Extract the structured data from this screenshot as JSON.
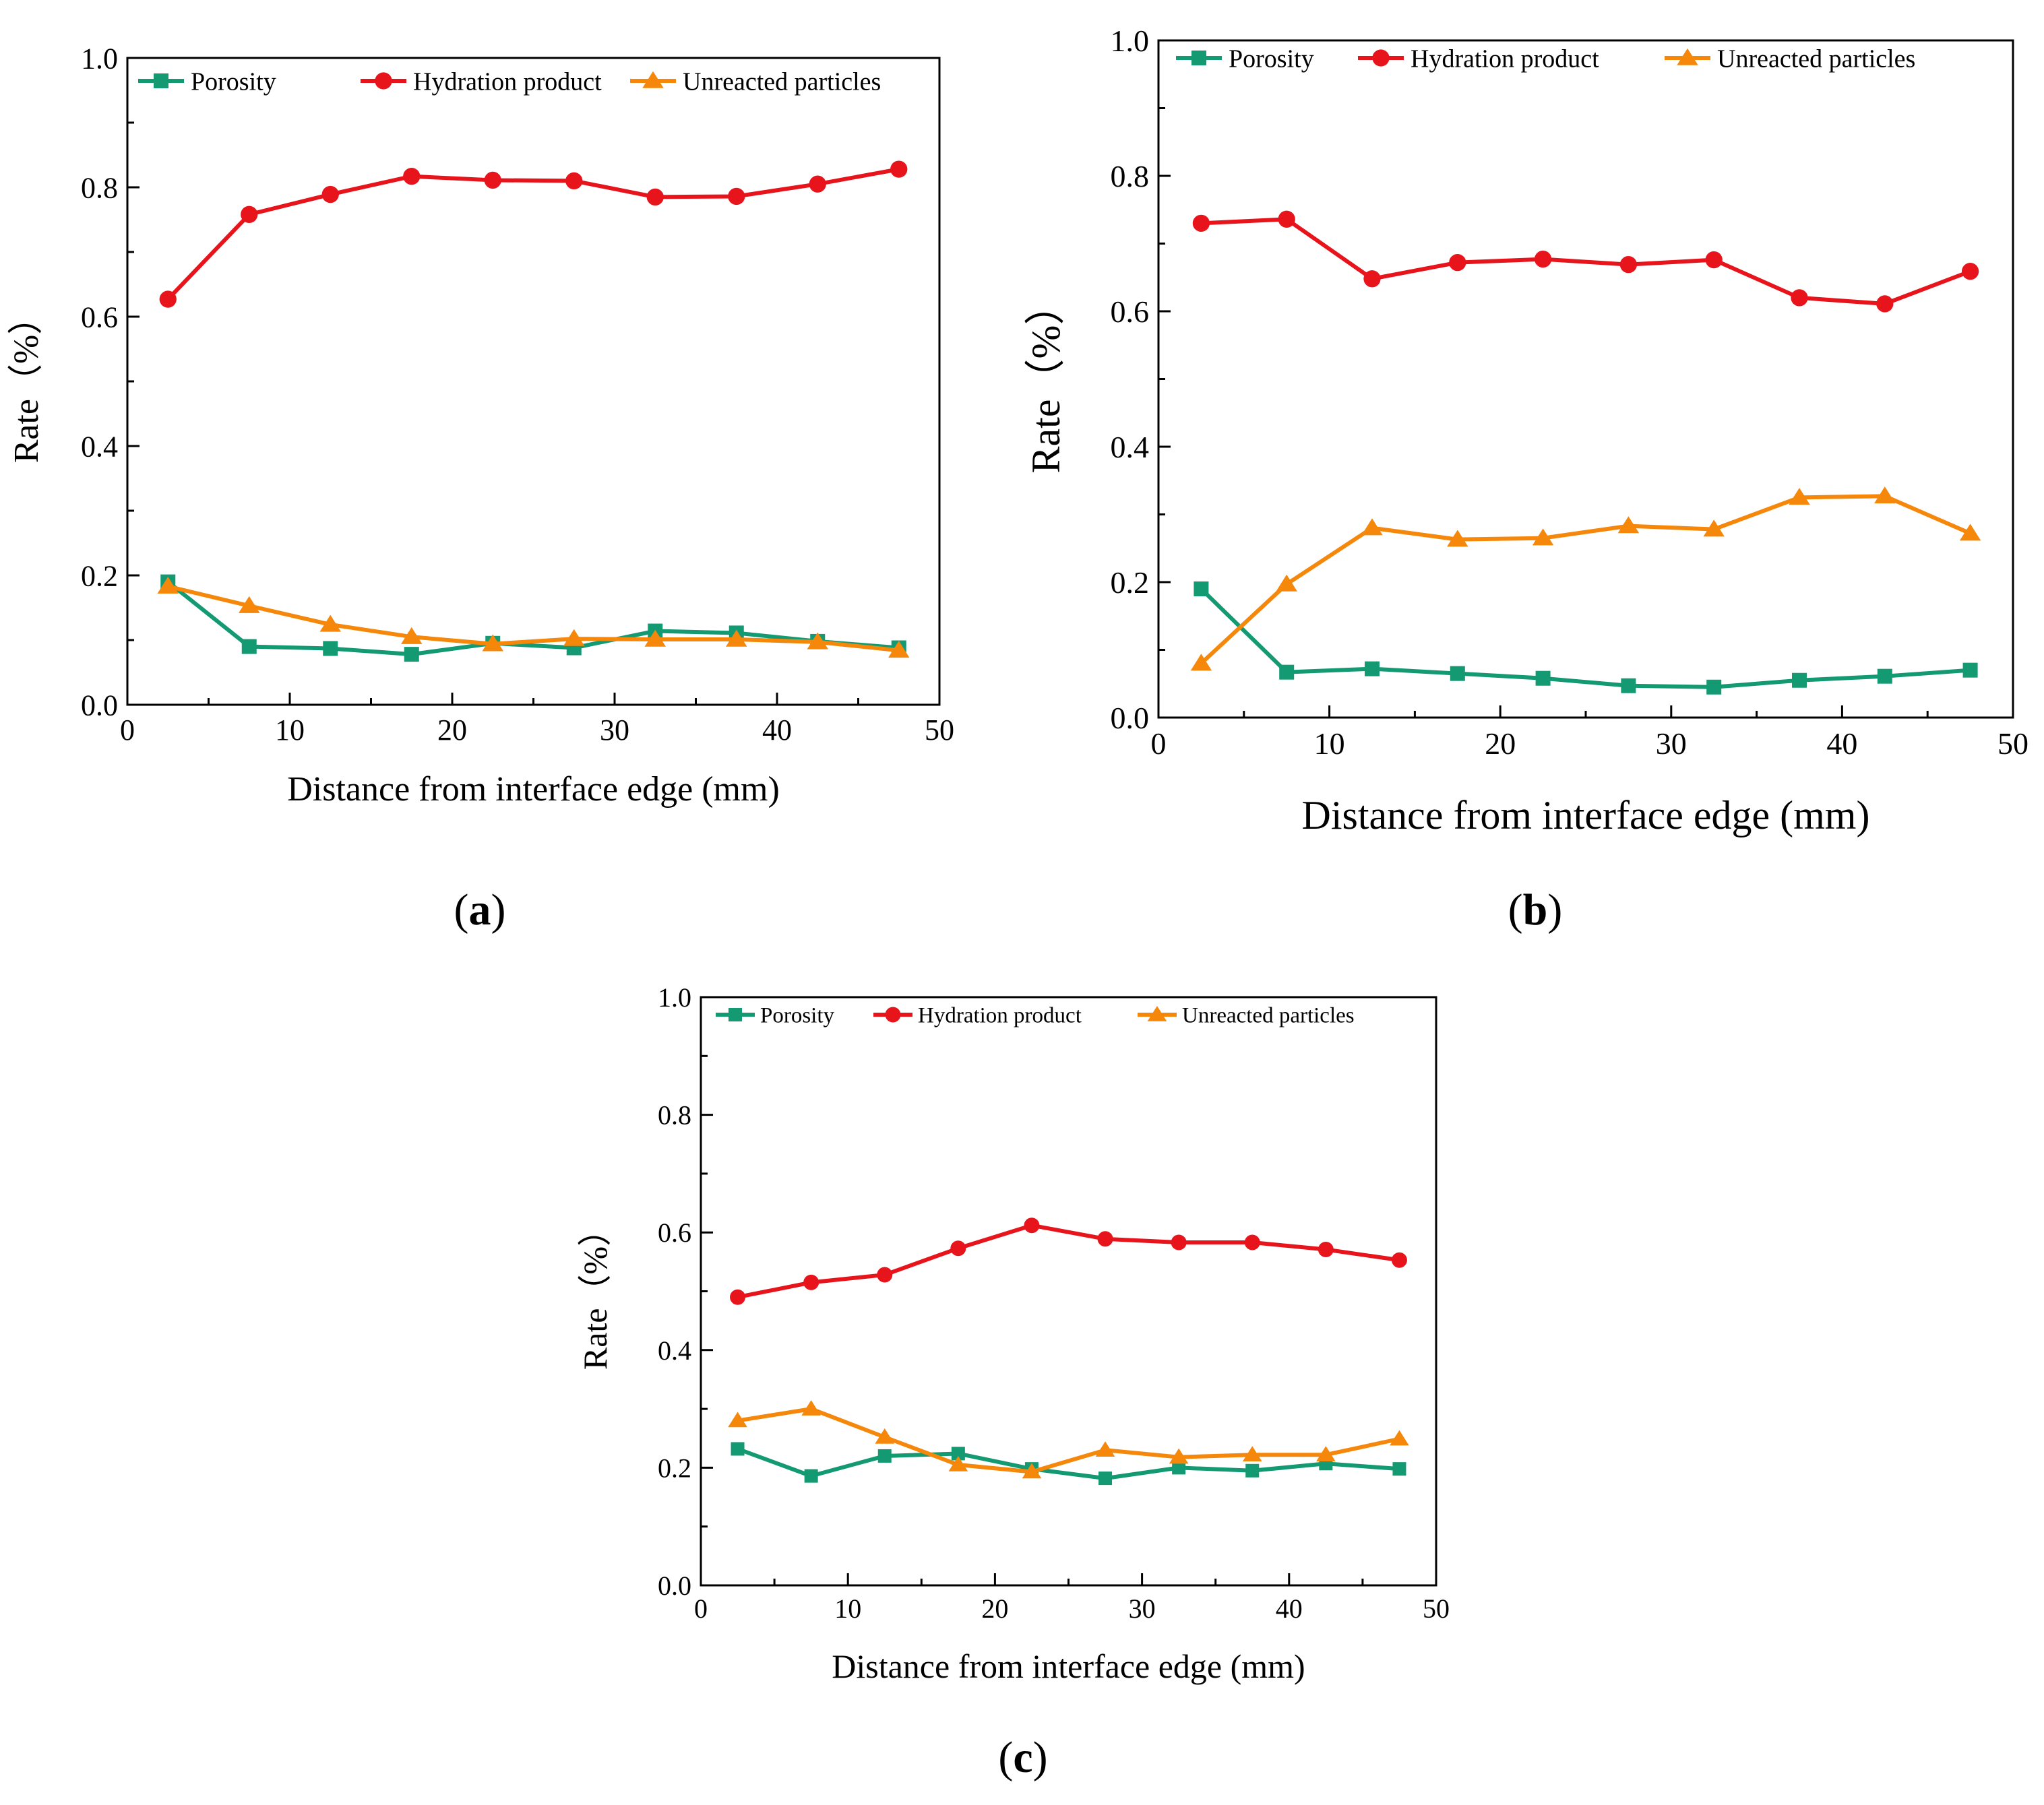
{
  "colors": {
    "porosity": "#149a72",
    "hydration": "#e8141c",
    "unreacted": "#f5870a",
    "axis": "#000000"
  },
  "chart_data": [
    {
      "panel": "a",
      "panel_label": "(a)",
      "type": "line",
      "xlabel": "Distance from interface edge (mm)",
      "ylabel": "Rate（%）",
      "xlim": [
        0,
        50
      ],
      "ylim": [
        0.0,
        1.0
      ],
      "x_ticks": [
        "0",
        "10",
        "20",
        "30",
        "40",
        "50"
      ],
      "y_ticks": [
        "0.0",
        "0.2",
        "0.4",
        "0.6",
        "0.8",
        "1.0"
      ],
      "grid": false,
      "legend": "top",
      "x": [
        2.5,
        7.5,
        12.5,
        17.5,
        22.5,
        27.5,
        32.5,
        37.5,
        42.5,
        47.5
      ],
      "series": [
        {
          "name": "Porosity",
          "marker": "square",
          "values": [
            0.19,
            0.09,
            0.087,
            0.078,
            0.095,
            0.088,
            0.114,
            0.111,
            0.098,
            0.088
          ]
        },
        {
          "name": "Hydration product",
          "marker": "circle",
          "values": [
            0.627,
            0.758,
            0.789,
            0.817,
            0.811,
            0.81,
            0.785,
            0.786,
            0.805,
            0.828
          ]
        },
        {
          "name": "Unreacted particles",
          "marker": "triangle",
          "values": [
            0.183,
            0.153,
            0.124,
            0.105,
            0.094,
            0.102,
            0.101,
            0.101,
            0.097,
            0.084
          ]
        }
      ]
    },
    {
      "panel": "b",
      "panel_label": "(b)",
      "type": "line",
      "xlabel": "Distance from interface edge (mm)",
      "ylabel": "Rate（%）",
      "xlim": [
        0,
        50
      ],
      "ylim": [
        0.0,
        1.0
      ],
      "x_ticks": [
        "0",
        "10",
        "20",
        "30",
        "40",
        "50"
      ],
      "y_ticks": [
        "0.0",
        "0.2",
        "0.4",
        "0.6",
        "0.8",
        "1.0"
      ],
      "grid": false,
      "legend": "top",
      "x": [
        2.5,
        7.5,
        12.5,
        17.5,
        22.5,
        27.5,
        32.5,
        37.5,
        42.5,
        47.5
      ],
      "series": [
        {
          "name": "Porosity",
          "marker": "square",
          "values": [
            0.19,
            0.067,
            0.072,
            0.065,
            0.058,
            0.047,
            0.045,
            0.055,
            0.061,
            0.07
          ]
        },
        {
          "name": "Hydration product",
          "marker": "circle",
          "values": [
            0.73,
            0.736,
            0.648,
            0.672,
            0.677,
            0.669,
            0.676,
            0.62,
            0.611,
            0.659
          ]
        },
        {
          "name": "Unreacted particles",
          "marker": "triangle",
          "values": [
            0.08,
            0.197,
            0.28,
            0.263,
            0.265,
            0.283,
            0.278,
            0.325,
            0.327,
            0.272
          ]
        }
      ]
    },
    {
      "panel": "c",
      "panel_label": "(c)",
      "type": "line",
      "xlabel": "Distance from interface edge (mm)",
      "ylabel": "Rate（%）",
      "xlim": [
        0,
        50
      ],
      "ylim": [
        0.0,
        1.0
      ],
      "x_ticks": [
        "0",
        "10",
        "20",
        "30",
        "40",
        "50"
      ],
      "y_ticks": [
        "0.0",
        "0.2",
        "0.4",
        "0.6",
        "0.8",
        "1.0"
      ],
      "grid": false,
      "legend": "top",
      "x": [
        2.5,
        7.5,
        12.5,
        17.5,
        22.5,
        27.5,
        32.5,
        37.5,
        42.5,
        47.5
      ],
      "series": [
        {
          "name": "Porosity",
          "marker": "square",
          "values": [
            0.232,
            0.186,
            0.22,
            0.224,
            0.198,
            0.182,
            0.2,
            0.195,
            0.207,
            0.198
          ]
        },
        {
          "name": "Hydration product",
          "marker": "circle",
          "values": [
            0.49,
            0.515,
            0.528,
            0.573,
            0.612,
            0.589,
            0.583,
            0.583,
            0.571,
            0.553
          ]
        },
        {
          "name": "Unreacted particles",
          "marker": "triangle",
          "values": [
            0.28,
            0.3,
            0.252,
            0.205,
            0.193,
            0.23,
            0.218,
            0.222,
            0.222,
            0.249
          ]
        }
      ]
    }
  ]
}
